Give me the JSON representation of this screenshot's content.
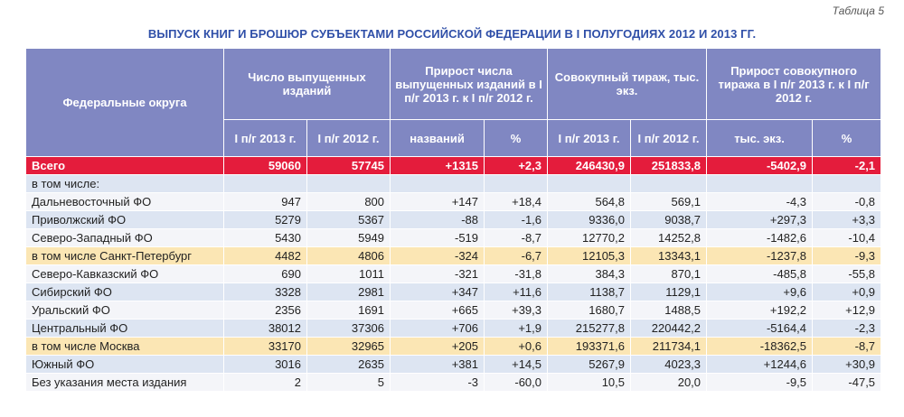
{
  "caption": "Таблица 5",
  "title": "ВЫПУСК КНИГ И БРОШЮР СУБЪЕКТАМИ РОССИЙСКОЙ ФЕДЕРАЦИИ В I ПОЛУГОДИЯХ 2012 И 2013 ГГ.",
  "headers": {
    "district": "Федеральные округа",
    "count": "Число выпущенных изданий",
    "count_growth": "Прирост числа выпущенных изданий в I п/г 2013 г. к I п/г 2012 г.",
    "circulation": "Совокупный тираж, тыс. экз.",
    "circulation_growth": "Прирост совокупного тиража в I п/г 2013 г. к I п/г 2012 г.",
    "sub": [
      "I п/г 2013 г.",
      "I п/г 2012 г.",
      "названий",
      "%",
      "I п/г 2013 г.",
      "I п/г 2012 г.",
      "тыс. экз.",
      "%"
    ]
  },
  "total": [
    "Всего",
    "59060",
    "57745",
    "+1315",
    "+2,3",
    "246430,9",
    "251833,8",
    "-5402,9",
    "-2,1"
  ],
  "subheading": "в том числе:",
  "rows": [
    {
      "style": "white",
      "cells": [
        "Дальневосточный ФО",
        "947",
        "800",
        "+147",
        "+18,4",
        "564,8",
        "569,1",
        "-4,3",
        "-0,8"
      ]
    },
    {
      "style": "blue",
      "cells": [
        "Приволжский ФО",
        "5279",
        "5367",
        "-88",
        "-1,6",
        "9336,0",
        "9038,7",
        "+297,3",
        "+3,3"
      ]
    },
    {
      "style": "white",
      "cells": [
        "Северо-Западный ФО",
        "5430",
        "5949",
        "-519",
        "-8,7",
        "12770,2",
        "14252,8",
        "-1482,6",
        "-10,4"
      ]
    },
    {
      "style": "yellow",
      "cells": [
        "в том числе Санкт-Петербург",
        "4482",
        "4806",
        "-324",
        "-6,7",
        "12105,3",
        "13343,1",
        "-1237,8",
        "-9,3"
      ]
    },
    {
      "style": "white",
      "cells": [
        "Северо-Кавказский ФО",
        "690",
        "1011",
        "-321",
        "-31,8",
        "384,3",
        "870,1",
        "-485,8",
        "-55,8"
      ]
    },
    {
      "style": "blue",
      "cells": [
        "Сибирский ФО",
        "3328",
        "2981",
        "+347",
        "+11,6",
        "1138,7",
        "1129,1",
        "+9,6",
        "+0,9"
      ]
    },
    {
      "style": "white",
      "cells": [
        "Уральский ФО",
        "2356",
        "1691",
        "+665",
        "+39,3",
        "1680,7",
        "1488,5",
        "+192,2",
        "+12,9"
      ]
    },
    {
      "style": "blue",
      "cells": [
        "Центральный ФО",
        "38012",
        "37306",
        "+706",
        "+1,9",
        "215277,8",
        "220442,2",
        "-5164,4",
        "-2,3"
      ]
    },
    {
      "style": "yellow",
      "cells": [
        "в том числе Москва",
        "33170",
        "32965",
        "+205",
        "+0,6",
        "193371,6",
        "211734,1",
        "-18362,5",
        "-8,7"
      ]
    },
    {
      "style": "blue",
      "cells": [
        "Южный ФО",
        "3016",
        "2635",
        "+381",
        "+14,5",
        "5267,9",
        "4023,3",
        "+1244,6",
        "+30,9"
      ]
    },
    {
      "style": "white",
      "cells": [
        "Без указания места издания",
        "2",
        "5",
        "-3",
        "-60,0",
        "10,5",
        "20,0",
        "-9,5",
        "-47,5"
      ]
    }
  ]
}
